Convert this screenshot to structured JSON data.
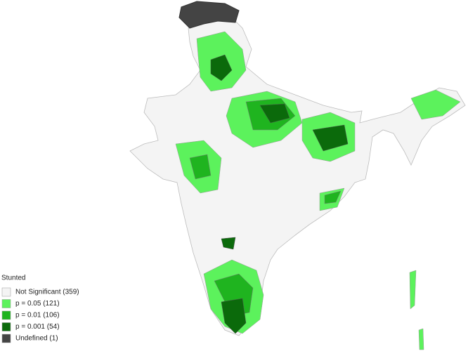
{
  "legend": {
    "title": "Stunted",
    "items": [
      {
        "label": "Not Significant (359)",
        "color": "#f4f4f4"
      },
      {
        "label": "p = 0.05 (121)",
        "color": "#5cf25c"
      },
      {
        "label": "p = 0.01 (106)",
        "color": "#1fb41f"
      },
      {
        "label": "p = 0.001 (54)",
        "color": "#0b6a0b"
      },
      {
        "label": "Undefined (1)",
        "color": "#444444"
      }
    ]
  }
}
